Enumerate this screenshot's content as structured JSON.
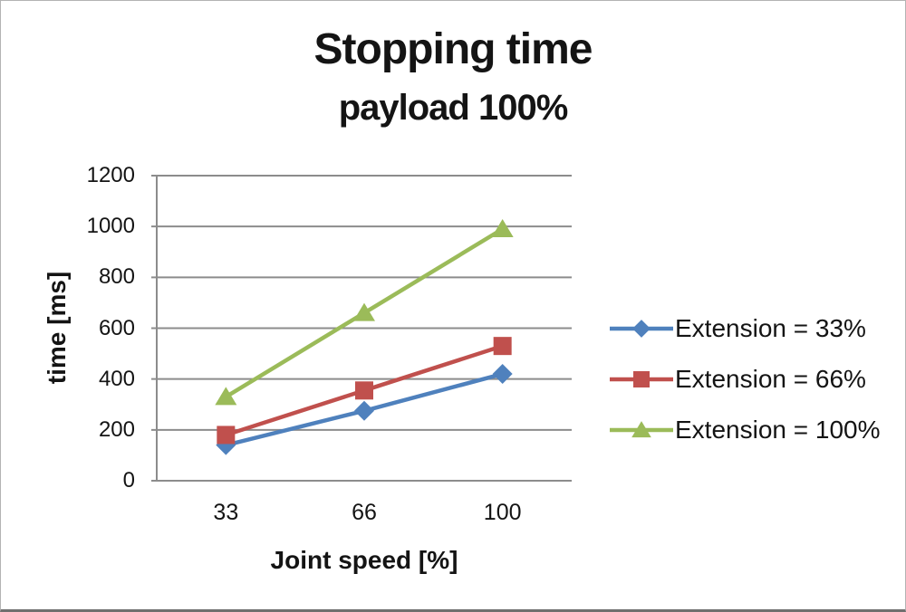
{
  "title": "Stopping time",
  "subtitle": "payload 100%",
  "chart_data": {
    "type": "line",
    "categories": [
      "33",
      "66",
      "100"
    ],
    "series": [
      {
        "name": "Extension = 33%",
        "marker": "diamond",
        "color": "#4F81BD",
        "values": [
          140,
          275,
          420
        ]
      },
      {
        "name": "Extension = 66%",
        "marker": "square",
        "color": "#C0504D",
        "values": [
          180,
          355,
          530
        ]
      },
      {
        "name": "Extension = 100%",
        "marker": "triangle",
        "color": "#9BBB59",
        "values": [
          330,
          660,
          990
        ]
      }
    ],
    "xlabel": "Joint speed [%]",
    "ylabel": "time [ms]",
    "ylim": [
      0,
      1200
    ],
    "ytick_step": 200,
    "grid": true,
    "legend_position": "right",
    "gridline_color": "#8C8C8C",
    "text_color": "#141414"
  }
}
